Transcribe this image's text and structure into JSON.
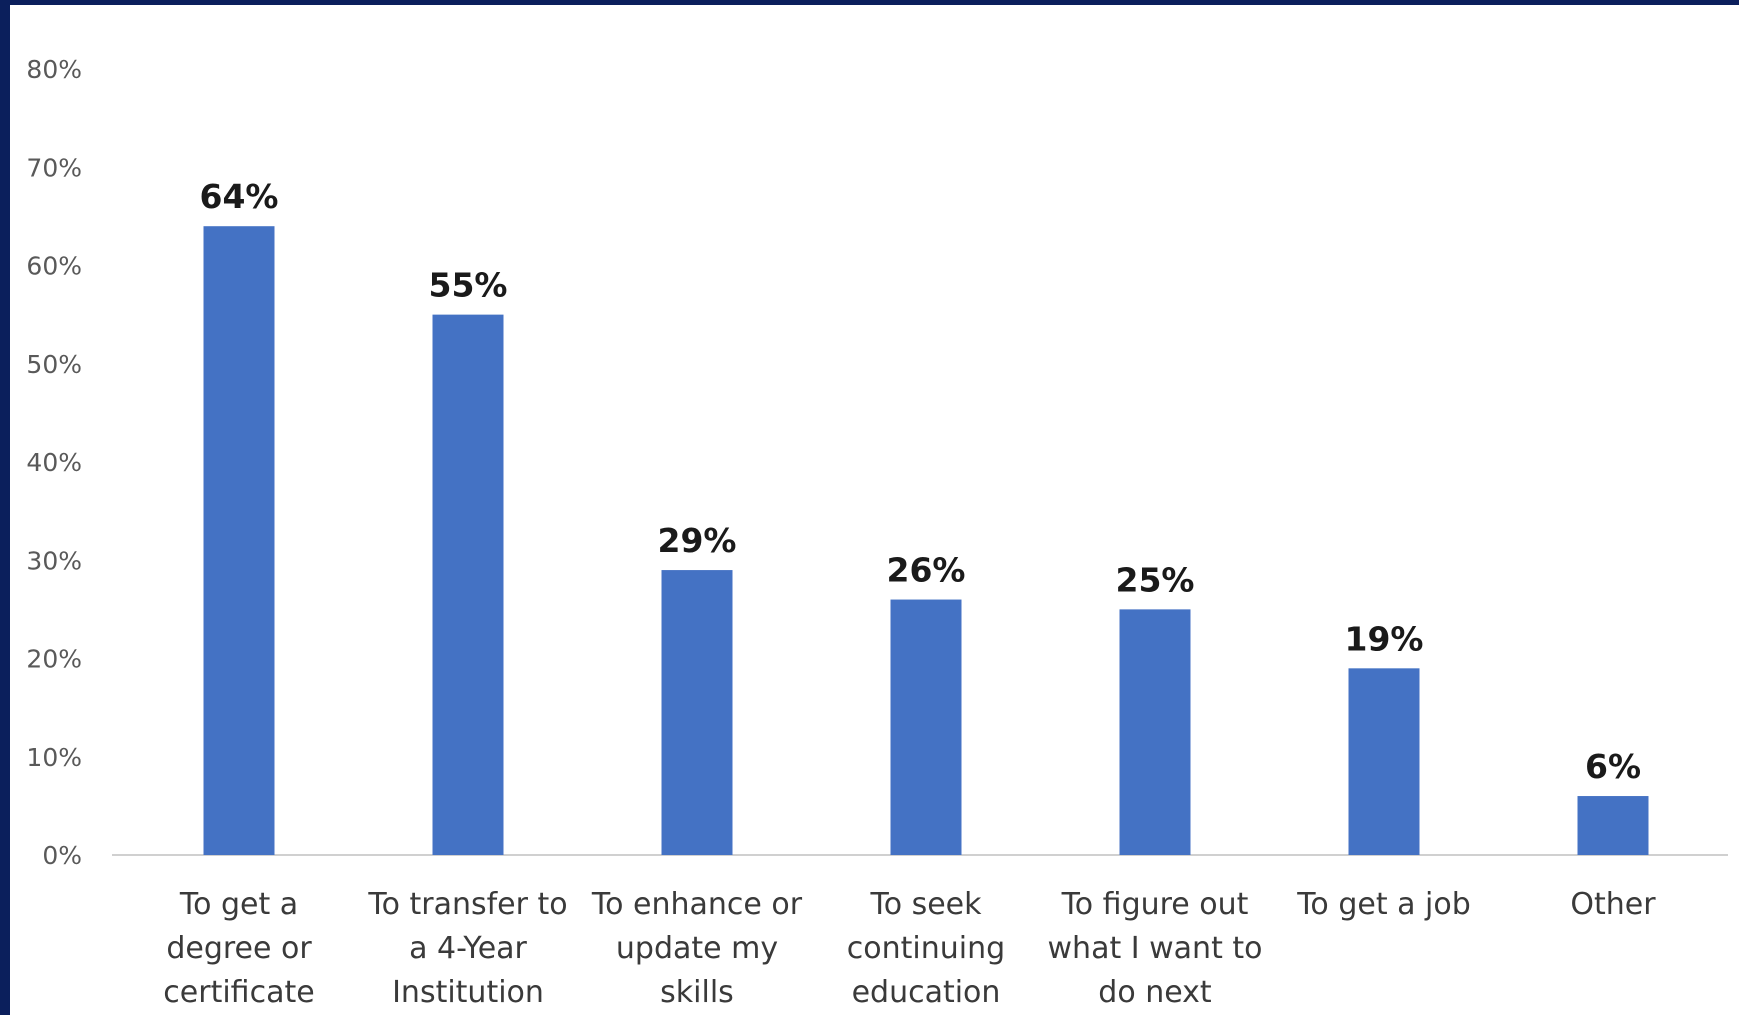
{
  "chart_data": {
    "type": "bar",
    "categories": [
      "To get a\ndegree or\ncertificate",
      "To transfer to\na 4-Year\nInstitution",
      "To enhance or\nupdate my\nskills",
      "To seek\ncontinuing\neducation",
      "To figure out\nwhat I want to\ndo next",
      "To get a job",
      "Other"
    ],
    "values": [
      64,
      55,
      29,
      26,
      25,
      19,
      6
    ],
    "data_labels": [
      "64%",
      "55%",
      "29%",
      "26%",
      "25%",
      "19%",
      "6%"
    ],
    "yticks": [
      "0%",
      "10%",
      "20%",
      "30%",
      "40%",
      "50%",
      "60%",
      "70%",
      "80%"
    ],
    "ylim": [
      0,
      80
    ],
    "bar_color": "#4472c4",
    "grid": false,
    "legend": "none"
  }
}
